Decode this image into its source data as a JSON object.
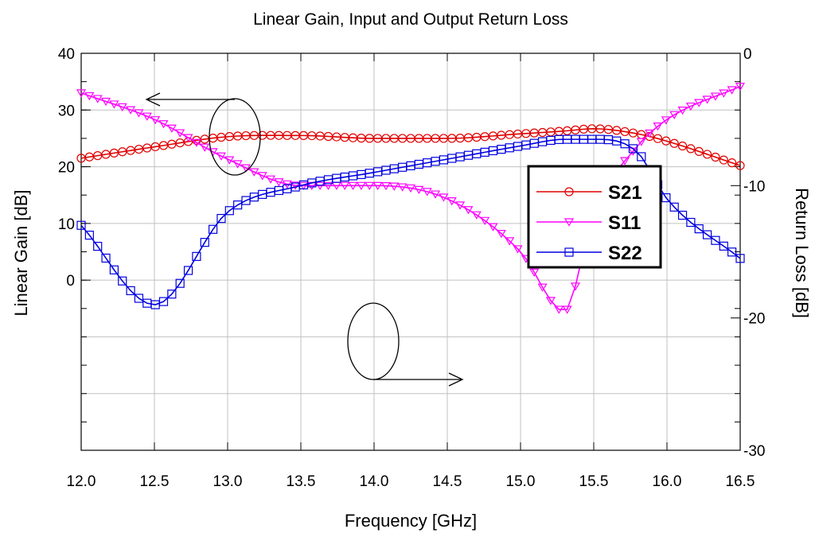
{
  "chart_data": {
    "type": "line",
    "title": "Linear Gain, Input and Output Return Loss",
    "xlabel": "Frequency [GHz]",
    "ylabel_left": "Linear Gain [dB]",
    "ylabel_right": "Return Loss [dB]",
    "xlim": [
      12.0,
      16.5
    ],
    "ylim_left": [
      -30,
      40
    ],
    "ylim_right": [
      -30,
      0
    ],
    "x_ticks": [
      "12.0",
      "12.5",
      "13.0",
      "13.5",
      "14.0",
      "14.5",
      "15.0",
      "15.5",
      "16.0",
      "16.5"
    ],
    "y_left_ticks": [
      "0",
      "10",
      "20",
      "30",
      "40"
    ],
    "y_right_ticks": [
      "0",
      "-10",
      "-20",
      "-30"
    ],
    "grid": true,
    "legend_position": "right",
    "x": [
      12.0,
      12.5,
      13.0,
      13.5,
      14.0,
      14.5,
      15.0,
      15.3,
      15.5,
      15.8,
      16.0,
      16.5
    ],
    "series": [
      {
        "name": "S21",
        "axis": "left",
        "color": "#e00000",
        "marker": "circle",
        "values": [
          21.5,
          23.5,
          25.3,
          25.5,
          25.0,
          25.0,
          25.8,
          26.3,
          26.7,
          25.8,
          24.5,
          20.2
        ]
      },
      {
        "name": "S11",
        "axis": "right",
        "color": "#ff00ff",
        "marker": "triangle-down",
        "values": [
          -3.0,
          -5.0,
          -8.0,
          -10.0,
          -10.0,
          -11.0,
          -15.0,
          -19.5,
          -12.0,
          -7.0,
          -5.0,
          -2.5
        ]
      },
      {
        "name": "S22",
        "axis": "right",
        "color": "#0000e0",
        "marker": "square",
        "values": [
          -13.0,
          -19.0,
          -12.0,
          -10.0,
          -9.0,
          -8.0,
          -7.0,
          -6.5,
          -6.5,
          -7.5,
          -11.0,
          -15.5
        ]
      }
    ],
    "annotations": [
      {
        "type": "ellipse-arrow",
        "points_to": "left axis"
      },
      {
        "type": "ellipse-arrow",
        "points_to": "right axis"
      }
    ]
  }
}
